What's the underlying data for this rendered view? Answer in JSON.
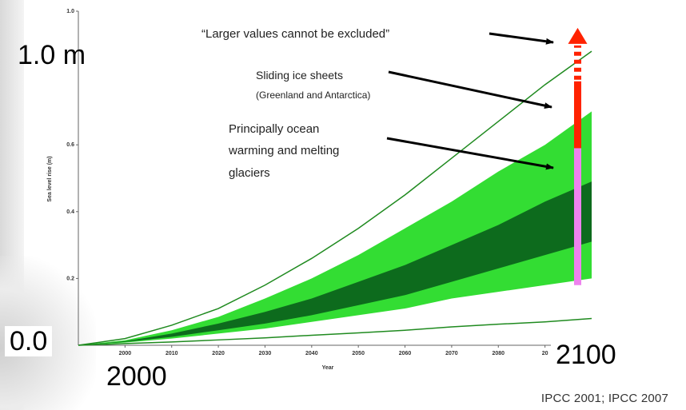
{
  "overlay": {
    "y_top": "1.0 m",
    "y_bottom": "0.0",
    "x_left": "2000",
    "x_right": "2100",
    "credit": "IPCC 2001; IPCC 2007"
  },
  "annotations": {
    "larger_values": "“Larger values cannot be excluded”",
    "ice_line1": "Sliding ice sheets",
    "ice_line2": "(Greenland and Antarctica)",
    "ocean_line1": "Principally ocean",
    "ocean_line2": "warming and melting",
    "ocean_line3": "glaciers"
  },
  "colors": {
    "outer_band": "#33dd33",
    "inner_band": "#0d6b1d",
    "envelope_line": "#1f8a1f",
    "bar_ocean": "#ee82ee",
    "bar_ice": "#ff2200",
    "arrow_dots": "#ff2200"
  },
  "chart_data": {
    "type": "area",
    "xlabel": "Year",
    "ylabel": "Sea level rise (m)",
    "xlim": [
      1990,
      2100
    ],
    "ylim": [
      0,
      1.0
    ],
    "x_ticks": [
      "2000",
      "2010",
      "2020",
      "2030",
      "2040",
      "2050",
      "2060",
      "2070",
      "2080",
      "20"
    ],
    "y_ticks": [
      "1.0",
      "0.6",
      "0.4",
      "0.2"
    ],
    "x": [
      1990,
      2000,
      2010,
      2020,
      2030,
      2040,
      2050,
      2060,
      2070,
      2080,
      2090,
      2100
    ],
    "series": [
      {
        "role": "upper_envelope",
        "values": [
          0.0,
          0.02,
          0.06,
          0.11,
          0.18,
          0.26,
          0.35,
          0.45,
          0.56,
          0.67,
          0.78,
          0.88
        ]
      },
      {
        "role": "outer_band_upper",
        "values": [
          0.0,
          0.015,
          0.045,
          0.085,
          0.14,
          0.2,
          0.27,
          0.35,
          0.43,
          0.52,
          0.6,
          0.7
        ]
      },
      {
        "role": "inner_band_upper",
        "values": [
          0.0,
          0.012,
          0.035,
          0.065,
          0.1,
          0.14,
          0.19,
          0.24,
          0.3,
          0.36,
          0.43,
          0.49
        ]
      },
      {
        "role": "inner_band_lower",
        "values": [
          0.0,
          0.01,
          0.025,
          0.045,
          0.065,
          0.09,
          0.12,
          0.15,
          0.19,
          0.23,
          0.27,
          0.31
        ]
      },
      {
        "role": "outer_band_lower",
        "values": [
          0.0,
          0.008,
          0.02,
          0.035,
          0.05,
          0.07,
          0.09,
          0.11,
          0.14,
          0.16,
          0.18,
          0.2
        ]
      },
      {
        "role": "lower_envelope",
        "values": [
          0.0,
          0.005,
          0.01,
          0.016,
          0.022,
          0.03,
          0.037,
          0.045,
          0.055,
          0.063,
          0.07,
          0.08
        ]
      }
    ],
    "bar": {
      "x": 2097,
      "ocean_segment": [
        0.18,
        0.59
      ],
      "ice_segment": [
        0.59,
        0.79
      ],
      "dotted_arrow": [
        0.79,
        0.95
      ]
    }
  }
}
